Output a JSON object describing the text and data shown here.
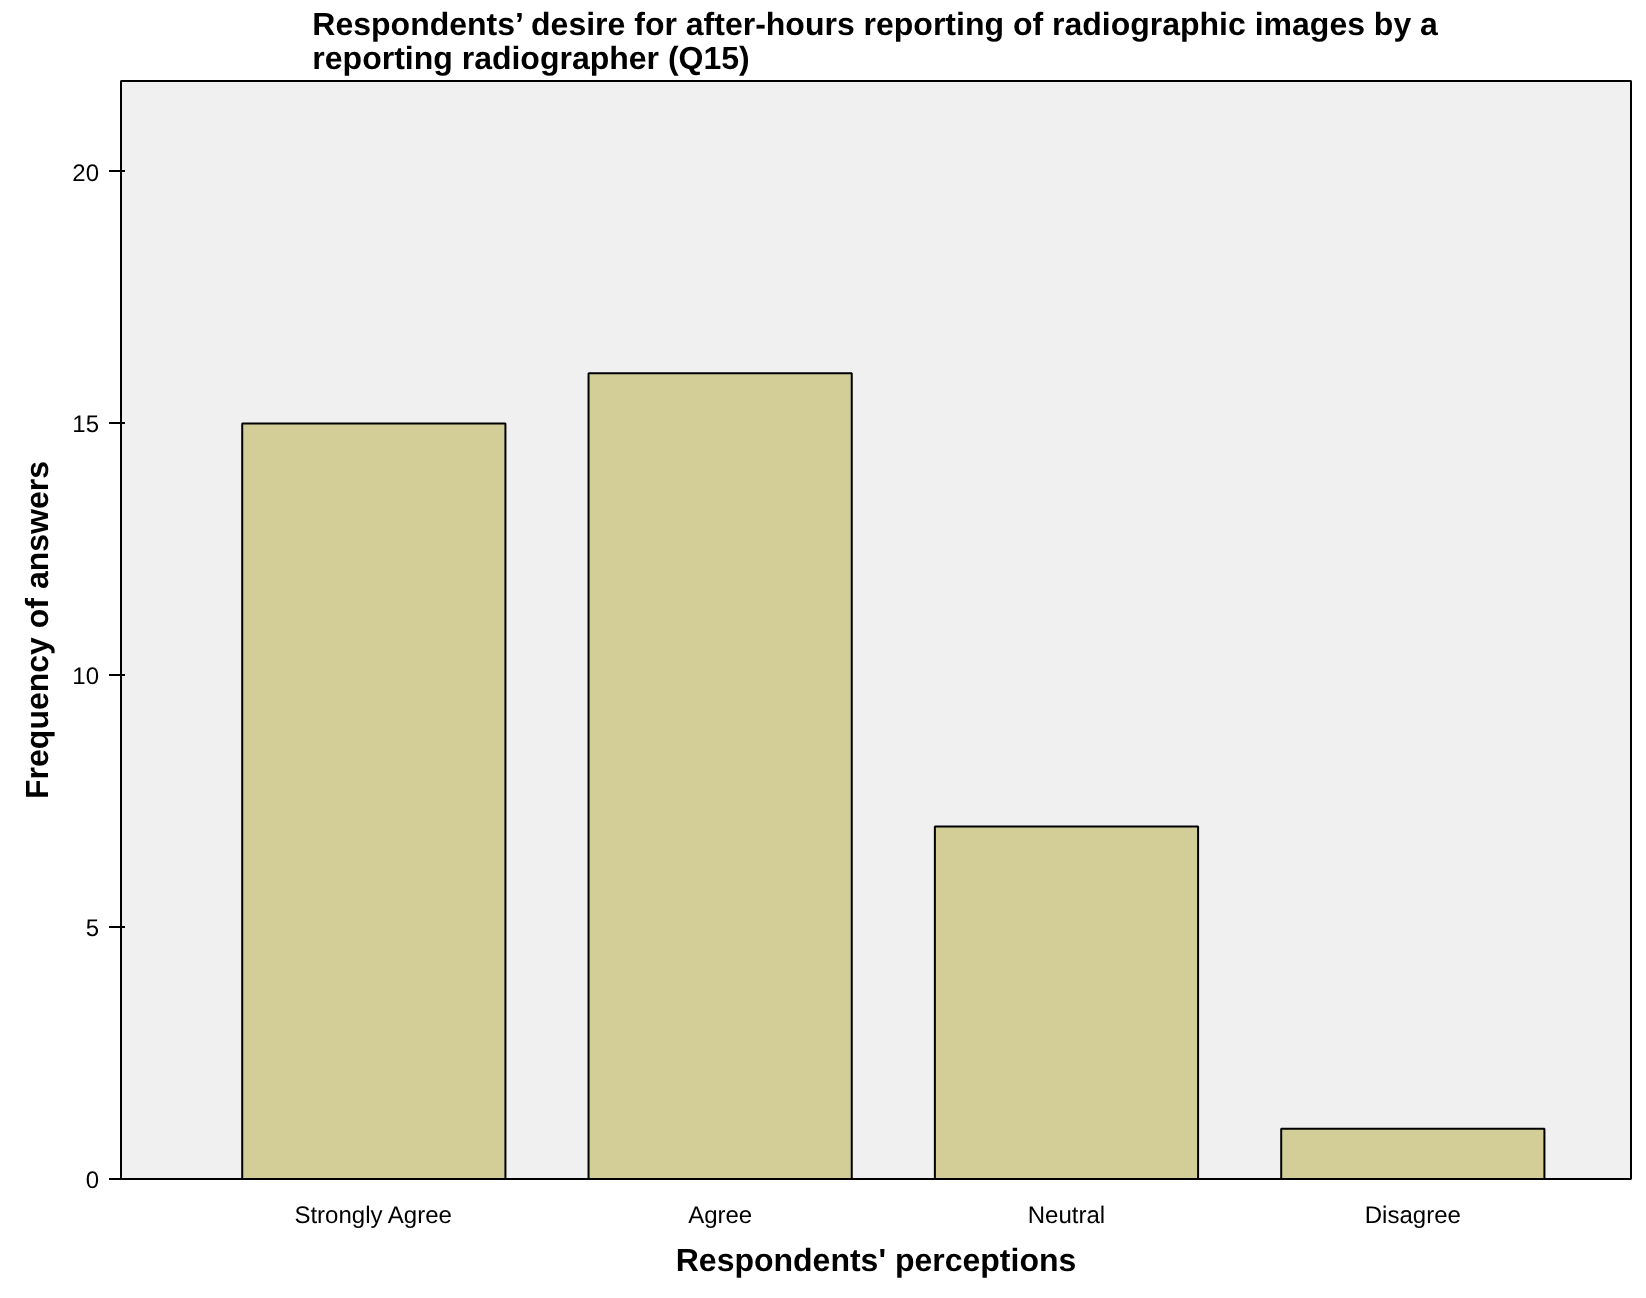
{
  "chart_data": {
    "type": "bar",
    "title": "Respondents’ desire for after-hours reporting of radiographic images by a reporting radiographer (Q15)",
    "xlabel": "Respondents' perceptions",
    "ylabel": "Frequency of answers",
    "categories": [
      "Strongly Agree",
      "Agree",
      "Neutral",
      "Disagree"
    ],
    "values": [
      15,
      16,
      7,
      1
    ],
    "color": "#d3ce97",
    "ylim": [
      0,
      21.8
    ],
    "yticks": [
      0,
      5,
      10,
      15,
      20
    ],
    "grid": false
  }
}
